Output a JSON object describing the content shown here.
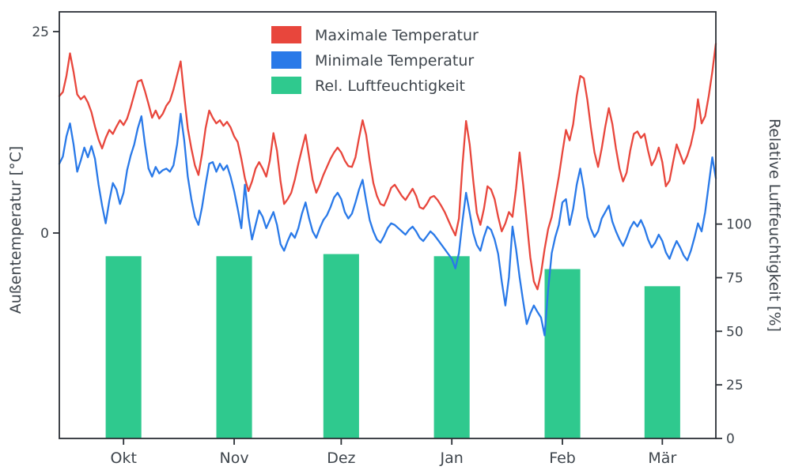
{
  "chart_data": {
    "type": "line",
    "title": "",
    "grid": false,
    "legend_position": "upper-center",
    "left_axis": {
      "label": "Außentemperatur [°C]",
      "ticks": [
        0,
        25
      ],
      "range": [
        -25.5,
        27.45
      ]
    },
    "right_axis": {
      "label": "Relative Luftfeuchtigkeit [%]",
      "ticks": [
        0,
        25,
        50,
        75,
        100
      ],
      "range": [
        0,
        199
      ]
    },
    "x_axis": {
      "label": "",
      "tick_labels": [
        "Okt",
        "Nov",
        "Dez",
        "Jan",
        "Feb",
        "Mär"
      ],
      "tick_days": [
        18,
        49,
        79,
        110,
        141,
        169
      ],
      "day_range": [
        0,
        184
      ]
    },
    "legend": [
      {
        "label": "Maximale Temperatur",
        "color": "#e8463c"
      },
      {
        "label": "Minimale Temperatur",
        "color": "#2979e8"
      },
      {
        "label": "Rel. Luftfeuchtigkeit",
        "color": "#2fc98e"
      }
    ],
    "series": [
      {
        "name": "Maximale Temperatur",
        "axis": "left",
        "color": "#e8463c",
        "values": [
          17.0,
          17.5,
          19.5,
          22.3,
          20.0,
          17.2,
          16.6,
          17.0,
          16.2,
          15.0,
          13.2,
          11.6,
          10.5,
          11.8,
          12.8,
          12.3,
          13.2,
          14.0,
          13.4,
          14.2,
          15.6,
          17.2,
          18.8,
          19.0,
          17.6,
          16.0,
          14.3,
          15.2,
          14.2,
          14.8,
          15.8,
          16.4,
          17.8,
          19.6,
          21.3,
          17.0,
          13.0,
          10.5,
          8.4,
          7.2,
          9.8,
          13.0,
          15.2,
          14.3,
          13.6,
          14.0,
          13.3,
          13.8,
          13.1,
          12.0,
          11.3,
          9.2,
          6.8,
          5.2,
          6.4,
          8.0,
          8.8,
          8.0,
          7.0,
          9.0,
          12.4,
          10.2,
          6.4,
          3.6,
          4.2,
          5.0,
          6.6,
          8.6,
          10.4,
          12.2,
          9.4,
          6.6,
          5.0,
          6.0,
          7.2,
          8.2,
          9.2,
          10.0,
          10.6,
          10.0,
          9.0,
          8.3,
          8.2,
          9.4,
          11.8,
          14.0,
          12.2,
          9.0,
          6.2,
          4.6,
          3.6,
          3.4,
          4.4,
          5.6,
          6.0,
          5.3,
          4.6,
          4.1,
          4.8,
          5.5,
          4.6,
          3.2,
          3.0,
          3.6,
          4.4,
          4.6,
          4.1,
          3.4,
          2.6,
          1.6,
          0.6,
          -0.3,
          1.8,
          8.5,
          13.9,
          11.0,
          6.5,
          2.5,
          1.0,
          3.0,
          5.8,
          5.4,
          4.2,
          2.0,
          0.2,
          1.2,
          2.6,
          2.0,
          5.5,
          10.0,
          6.0,
          1.5,
          -3.0,
          -6.0,
          -7.0,
          -5.0,
          -2.0,
          0.5,
          2.0,
          4.5,
          7.0,
          10.0,
          12.8,
          11.5,
          13.5,
          17.0,
          19.5,
          19.2,
          16.5,
          13.0,
          10.0,
          8.2,
          10.5,
          13.2,
          15.5,
          13.5,
          10.5,
          8.0,
          6.4,
          7.5,
          10.2,
          12.3,
          12.6,
          11.8,
          12.3,
          10.2,
          8.4,
          9.2,
          10.6,
          8.8,
          5.8,
          6.5,
          8.8,
          11.0,
          9.8,
          8.6,
          9.6,
          11.0,
          13.0,
          16.6,
          13.6,
          14.5,
          17.0,
          20.0,
          23.5
        ]
      },
      {
        "name": "Minimale Temperatur",
        "axis": "left",
        "color": "#2979e8",
        "values": [
          8.6,
          9.5,
          12.0,
          13.6,
          11.0,
          7.6,
          9.0,
          10.6,
          9.4,
          10.8,
          9.2,
          6.0,
          3.4,
          1.2,
          4.0,
          6.2,
          5.4,
          3.6,
          5.0,
          7.8,
          9.6,
          11.0,
          13.0,
          14.5,
          11.0,
          8.0,
          7.0,
          8.2,
          7.4,
          7.8,
          8.0,
          7.6,
          8.4,
          11.0,
          14.8,
          11.5,
          7.0,
          4.2,
          2.0,
          1.0,
          3.2,
          6.0,
          8.6,
          8.8,
          7.6,
          8.6,
          7.8,
          8.4,
          7.0,
          5.2,
          3.0,
          0.6,
          6.0,
          2.0,
          -0.8,
          1.0,
          2.8,
          2.0,
          0.6,
          1.6,
          2.6,
          1.0,
          -1.4,
          -2.2,
          -1.0,
          0.0,
          -0.6,
          0.6,
          2.4,
          3.8,
          1.8,
          0.2,
          -0.6,
          0.6,
          1.6,
          2.2,
          3.2,
          4.4,
          5.0,
          4.2,
          2.6,
          1.8,
          2.4,
          3.8,
          5.4,
          6.6,
          4.0,
          1.6,
          0.2,
          -0.8,
          -1.2,
          -0.4,
          0.6,
          1.2,
          1.0,
          0.6,
          0.2,
          -0.2,
          0.4,
          0.8,
          0.2,
          -0.6,
          -1.0,
          -0.4,
          0.2,
          -0.2,
          -0.8,
          -1.4,
          -2.0,
          -2.6,
          -3.2,
          -4.4,
          -2.5,
          1.5,
          5.0,
          2.5,
          0.0,
          -1.5,
          -2.2,
          -0.5,
          0.8,
          0.4,
          -0.8,
          -2.6,
          -6.0,
          -9.0,
          -5.5,
          0.8,
          -2.0,
          -5.5,
          -8.5,
          -11.3,
          -10.0,
          -9.0,
          -9.8,
          -10.5,
          -12.7,
          -7.0,
          -2.5,
          -0.5,
          1.0,
          3.8,
          4.2,
          1.0,
          3.0,
          6.0,
          8.0,
          5.5,
          2.0,
          0.5,
          -0.5,
          0.2,
          1.8,
          2.6,
          3.4,
          1.4,
          0.2,
          -0.8,
          -1.6,
          -0.6,
          0.6,
          1.4,
          0.8,
          1.6,
          0.6,
          -0.8,
          -1.8,
          -1.2,
          -0.2,
          -1.0,
          -2.4,
          -3.2,
          -2.0,
          -1.0,
          -1.8,
          -2.8,
          -3.4,
          -2.2,
          -0.6,
          1.2,
          0.2,
          2.6,
          6.0,
          9.4,
          6.8
        ]
      }
    ],
    "bars": {
      "name": "Rel. Luftfeuchtigkeit",
      "axis": "right",
      "color": "#2fc98e",
      "categories": [
        "Okt",
        "Nov",
        "Dez",
        "Jan",
        "Feb",
        "Mär"
      ],
      "values": [
        85,
        85,
        86,
        85,
        79,
        71
      ],
      "center_days": [
        18,
        49,
        79,
        110,
        141,
        169
      ],
      "width_days": 10
    }
  }
}
